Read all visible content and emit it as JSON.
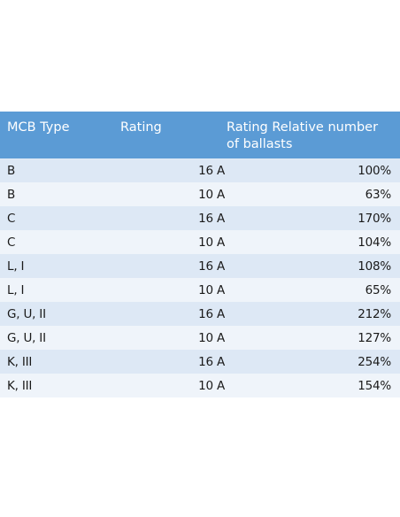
{
  "table": {
    "headers": {
      "type": "MCB Type",
      "rating": "Rating",
      "relative": "Rating Relative number of ballasts"
    },
    "rows": [
      {
        "type": "B",
        "rating": "16 A",
        "relative": "100%"
      },
      {
        "type": "B",
        "rating": "10 A",
        "relative": "63%"
      },
      {
        "type": "C",
        "rating": "16 A",
        "relative": "170%"
      },
      {
        "type": "C",
        "rating": "10 A",
        "relative": "104%"
      },
      {
        "type": "L, I",
        "rating": "16 A",
        "relative": "108%"
      },
      {
        "type": "L, I",
        "rating": "10 A",
        "relative": "65%"
      },
      {
        "type": "G, U, II",
        "rating": "16 A",
        "relative": "212%"
      },
      {
        "type": "G, U, II",
        "rating": "10 A",
        "relative": "127%"
      },
      {
        "type": "K, III",
        "rating": "16 A",
        "relative": "254%"
      },
      {
        "type": "K, III",
        "rating": "10 A",
        "relative": "154%"
      }
    ]
  },
  "colors": {
    "header_bg": "#5b9bd5",
    "row_odd": "#dde8f5",
    "row_even": "#eff4fa"
  }
}
